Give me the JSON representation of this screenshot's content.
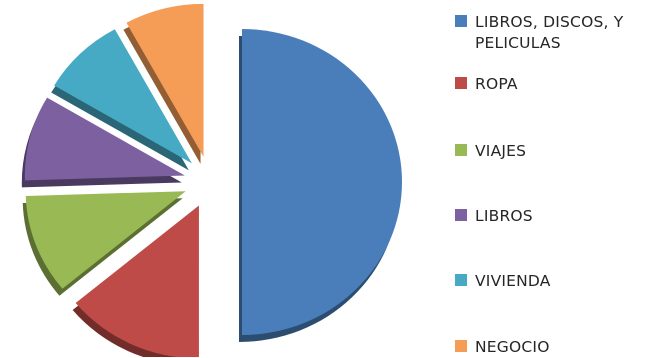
{
  "chart_data": {
    "type": "pie",
    "title": "",
    "categories": [
      "LIBROS, DISCOS, Y PELICULAS",
      "ROPA",
      "VIAJES",
      "LIBROS",
      "VIVIENDA",
      "NEGOCIO"
    ],
    "values": [
      50,
      14,
      10.5,
      9,
      8.5,
      8
    ],
    "colors": [
      "#4a7ebb",
      "#be4b48",
      "#98b954",
      "#7d60a0",
      "#46aac5",
      "#f59d56"
    ],
    "exploded": true,
    "three_d": true,
    "legend_position": "right"
  }
}
